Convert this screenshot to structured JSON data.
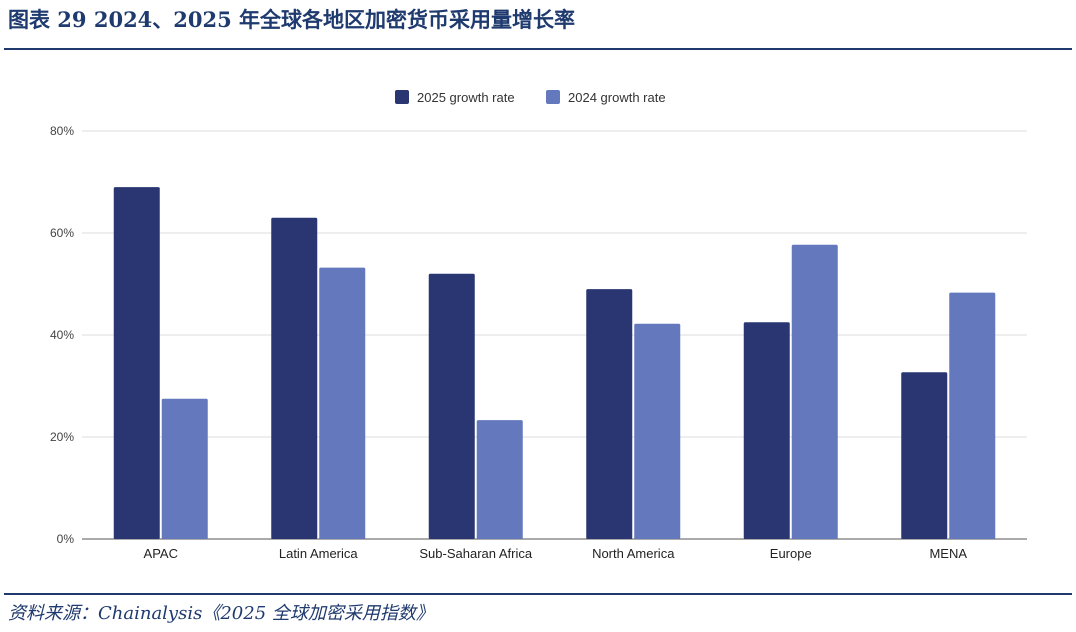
{
  "figure": {
    "title": "图表 29   2024、2025 年全球各地区加密货币采用量增长率",
    "source": "资料来源：Chainalysis《2025 全球加密采用指数》"
  },
  "chart_data": {
    "type": "bar",
    "categories": [
      "APAC",
      "Latin America",
      "Sub-Saharan Africa",
      "North America",
      "Europe",
      "MENA"
    ],
    "series": [
      {
        "name": "2025 growth rate",
        "color": "#293672",
        "values": [
          69,
          63,
          52,
          49,
          42.5,
          32.7
        ]
      },
      {
        "name": "2024 growth rate",
        "color": "#6378bd",
        "values": [
          27.5,
          53.2,
          23.3,
          42.2,
          57.7,
          48.3
        ]
      }
    ],
    "yticks": [
      "0%",
      "20%",
      "40%",
      "60%",
      "80%"
    ],
    "ylim": [
      0,
      80
    ],
    "grid": true,
    "legend_position": "top-center"
  }
}
